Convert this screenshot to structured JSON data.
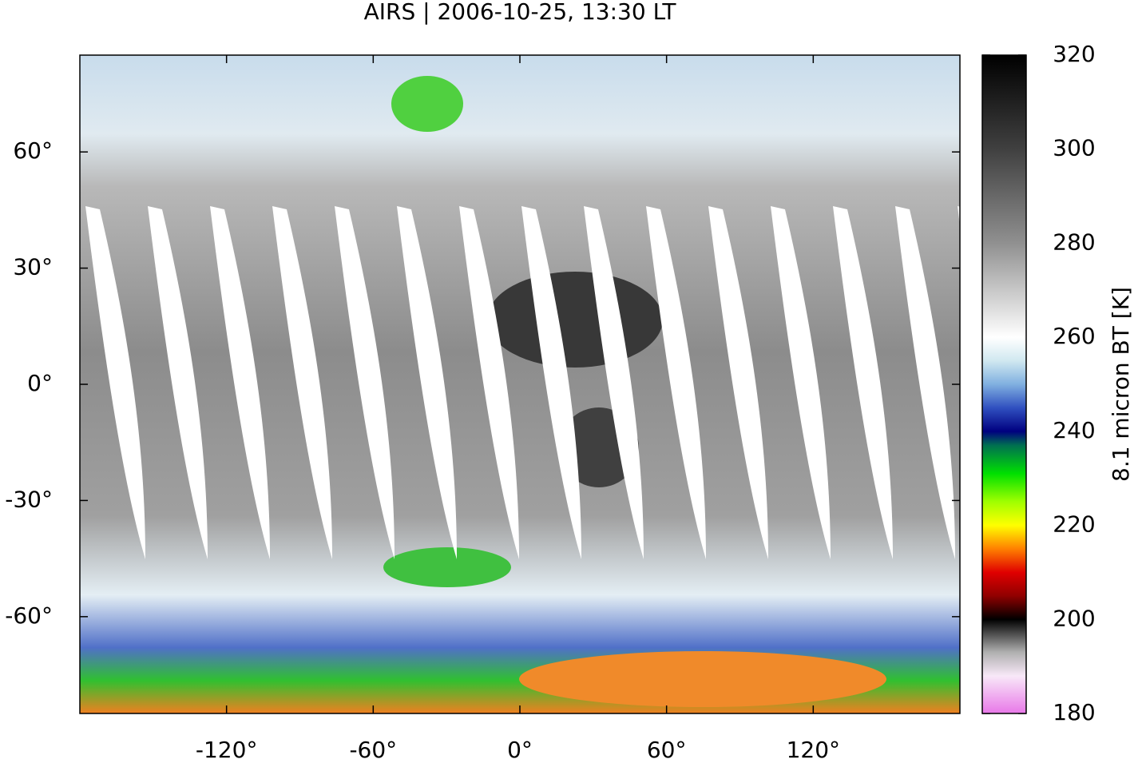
{
  "title": "AIRS | 2006-10-25, 13:30 LT",
  "map": {
    "xlim": [
      -180,
      180
    ],
    "ylim": [
      -85,
      85
    ],
    "xticks": [
      {
        "value": -120,
        "label": "-120°"
      },
      {
        "value": -60,
        "label": "-60°"
      },
      {
        "value": 0,
        "label": "0°"
      },
      {
        "value": 60,
        "label": "60°"
      },
      {
        "value": 120,
        "label": "120°"
      }
    ],
    "yticks": [
      {
        "value": 60,
        "label": "60°"
      },
      {
        "value": 30,
        "label": "30°"
      },
      {
        "value": 0,
        "label": "0°"
      },
      {
        "value": -30,
        "label": "-30°"
      },
      {
        "value": -60,
        "label": "-60°"
      }
    ]
  },
  "colorbar": {
    "label": "8.1 micron BT [K]",
    "lim": [
      180,
      320
    ],
    "ticks": [
      180,
      200,
      220,
      240,
      260,
      280,
      300,
      320
    ],
    "colormap": [
      {
        "value": 180,
        "color": "#e878e8"
      },
      {
        "value": 188,
        "color": "#f8e8f8"
      },
      {
        "value": 193,
        "color": "#b0b0b0"
      },
      {
        "value": 200,
        "color": "#000000"
      },
      {
        "value": 205,
        "color": "#900000"
      },
      {
        "value": 210,
        "color": "#e00000"
      },
      {
        "value": 215,
        "color": "#ff8000"
      },
      {
        "value": 220,
        "color": "#ffff00"
      },
      {
        "value": 225,
        "color": "#a0ff00"
      },
      {
        "value": 231,
        "color": "#00e000"
      },
      {
        "value": 237,
        "color": "#007050"
      },
      {
        "value": 240,
        "color": "#000080"
      },
      {
        "value": 245,
        "color": "#3050c0"
      },
      {
        "value": 250,
        "color": "#80b0e0"
      },
      {
        "value": 255,
        "color": "#d0e8f0"
      },
      {
        "value": 260,
        "color": "#ffffff"
      },
      {
        "value": 280,
        "color": "#909090"
      },
      {
        "value": 300,
        "color": "#404040"
      },
      {
        "value": 320,
        "color": "#000000"
      }
    ]
  }
}
